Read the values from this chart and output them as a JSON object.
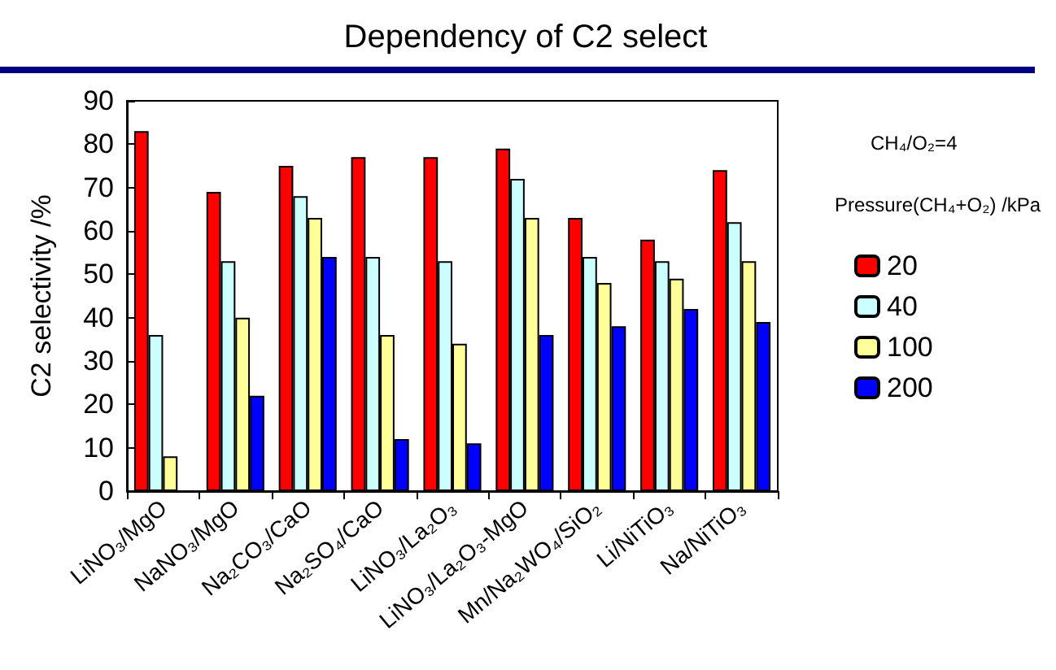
{
  "chart_data": {
    "type": "bar",
    "title": "Dependency of C2 select",
    "categories": [
      "LiNO₃/MgO",
      "NaNO₃/MgO",
      "Na₂CO₃/CaO",
      "Na₂SO₄/CaO",
      "LiNO₃/La₂O₃",
      "LiNO₃/La₂O₃-MgO",
      "Mn/Na₂WO₄/SiO₂",
      "Li/NiTiO₃",
      "Na/NiTiO₃"
    ],
    "series": [
      {
        "name": "20",
        "color": "#ff0000",
        "values": [
          83,
          69,
          75,
          77,
          77,
          79,
          63,
          58,
          74
        ]
      },
      {
        "name": "40",
        "color": "#ccffff",
        "values": [
          36,
          53,
          68,
          54,
          53,
          72,
          54,
          53,
          62
        ]
      },
      {
        "name": "100",
        "color": "#ffff99",
        "values": [
          8,
          40,
          63,
          36,
          34,
          63,
          48,
          49,
          53
        ]
      },
      {
        "name": "200",
        "color": "#0000ff",
        "values": [
          null,
          22,
          54,
          12,
          11,
          36,
          38,
          42,
          39
        ]
      }
    ],
    "ylabel": "C2 selectivity /%",
    "ylim": [
      0,
      90
    ],
    "yticks": [
      0,
      10,
      20,
      30,
      40,
      50,
      60,
      70,
      80,
      90
    ],
    "legend_title": "Pressure(CH₄+O₂) /kPa",
    "annotations": [
      "CH₄/O₂=4"
    ],
    "legend": "right",
    "grid": false
  }
}
